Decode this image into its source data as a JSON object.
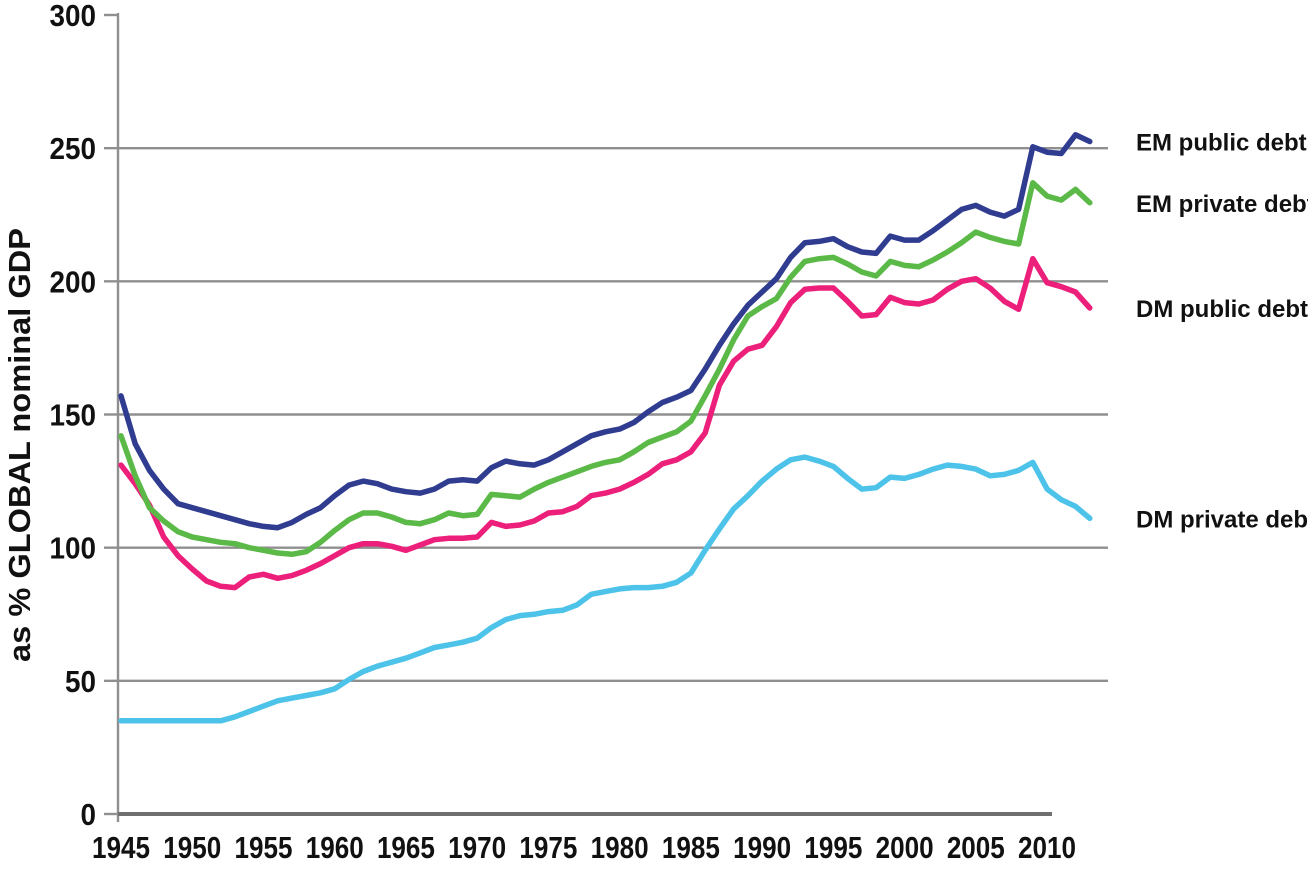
{
  "page": {
    "background": "#ffffff"
  },
  "chart_data": {
    "type": "line",
    "title": "",
    "ylabel": "as % GLOBAL nominal GDP",
    "xlabel": "",
    "ylim": [
      0,
      300
    ],
    "yticks": [
      0,
      50,
      100,
      150,
      200,
      250,
      300
    ],
    "xticks": [
      1945,
      1950,
      1955,
      1960,
      1965,
      1970,
      1975,
      1980,
      1985,
      1990,
      1995,
      2000,
      2005,
      2010
    ],
    "grid": "horizontal",
    "grid_color": "#8f8f8f",
    "axis_color": "#6f6f6f",
    "text_color": "#111111",
    "legend_position": "right",
    "x": [
      1945,
      1946,
      1947,
      1948,
      1949,
      1950,
      1951,
      1952,
      1953,
      1954,
      1955,
      1956,
      1957,
      1958,
      1959,
      1960,
      1961,
      1962,
      1963,
      1964,
      1965,
      1966,
      1967,
      1968,
      1969,
      1970,
      1971,
      1972,
      1973,
      1974,
      1975,
      1976,
      1977,
      1978,
      1979,
      1980,
      1981,
      1982,
      1983,
      1984,
      1985,
      1986,
      1987,
      1988,
      1989,
      1990,
      1991,
      1992,
      1993,
      1994,
      1995,
      1996,
      1997,
      1998,
      1999,
      2000,
      2001,
      2002,
      2003,
      2004,
      2005,
      2006,
      2007,
      2008,
      2009,
      2010,
      2011,
      2012,
      2013
    ],
    "series": [
      {
        "name": "EM public debt",
        "color": "#2f3c90",
        "values": [
          157,
          139,
          129,
          122,
          116.5,
          115,
          113.5,
          112,
          110.5,
          109,
          108,
          107.5,
          109.5,
          112.5,
          115,
          119.5,
          123.5,
          125,
          124,
          122,
          121,
          120.5,
          122,
          125,
          125.5,
          125,
          130,
          132.5,
          131.5,
          131,
          133,
          136,
          139,
          142,
          143.5,
          144.5,
          147,
          151,
          154.5,
          156.5,
          159,
          167,
          176,
          184,
          191,
          196,
          201,
          209,
          214.5,
          215,
          216,
          213,
          211,
          210.5,
          217,
          215.5,
          215.5,
          219,
          223,
          227,
          228.5,
          226,
          224.5,
          227,
          250.5,
          248.5,
          248,
          255,
          252.5
        ]
      },
      {
        "name": "EM private debt",
        "color": "#5bb947",
        "values": [
          142,
          127,
          115,
          110,
          106,
          104,
          103,
          102,
          101.5,
          100,
          99,
          98,
          97.5,
          98.5,
          102,
          106.5,
          110.5,
          113,
          113,
          111.5,
          109.5,
          109,
          110.5,
          113,
          112,
          112.5,
          120,
          119.5,
          119,
          122,
          124.5,
          126.5,
          128.5,
          130.5,
          132,
          133,
          136,
          139.5,
          141.5,
          143.5,
          147.5,
          157,
          167,
          178,
          187,
          190.5,
          193.5,
          201.5,
          207.5,
          208.5,
          209,
          206.5,
          203.5,
          202,
          207.5,
          206,
          205.5,
          208,
          211,
          214.5,
          218.5,
          216.5,
          215,
          214,
          237,
          232,
          230.5,
          234.5,
          229.5
        ]
      },
      {
        "name": "DM public debt",
        "color": "#ec1f7b",
        "values": [
          131,
          124,
          116,
          104,
          97,
          92,
          87.5,
          85.5,
          85,
          89,
          90,
          88.5,
          89.5,
          91.5,
          94,
          97,
          100,
          101.5,
          101.5,
          100.5,
          99,
          101,
          103,
          103.5,
          103.5,
          104,
          109.5,
          108,
          108.5,
          110,
          113,
          113.5,
          115.5,
          119.5,
          120.5,
          122,
          124.5,
          127.5,
          131.5,
          133,
          136,
          143,
          161,
          170,
          174.5,
          176,
          183,
          192,
          197,
          197.5,
          197.5,
          192.5,
          187,
          187.5,
          194,
          192,
          191.5,
          193,
          197,
          200,
          201,
          197.5,
          192.5,
          189.5,
          208.5,
          199.5,
          198,
          196,
          190
        ]
      },
      {
        "name": "DM private debt",
        "color": "#4dc3ea",
        "values": [
          35,
          35,
          35,
          35,
          35,
          35,
          35,
          35,
          36.5,
          38.5,
          40.5,
          42.5,
          43.5,
          44.5,
          45.5,
          47,
          50.5,
          53.5,
          55.5,
          57,
          58.5,
          60.5,
          62.5,
          63.5,
          64.5,
          66,
          70,
          73,
          74.5,
          75,
          76,
          76.5,
          78.5,
          82.5,
          83.5,
          84.5,
          85,
          85,
          85.5,
          87,
          90.5,
          99,
          107,
          114.5,
          119.5,
          125,
          129.5,
          133,
          134,
          132.5,
          130.5,
          126,
          122,
          122.5,
          126.5,
          126,
          127.5,
          129.5,
          131,
          130.5,
          129.5,
          127,
          127.5,
          129,
          132,
          122,
          118,
          115.5,
          111
        ]
      }
    ]
  }
}
